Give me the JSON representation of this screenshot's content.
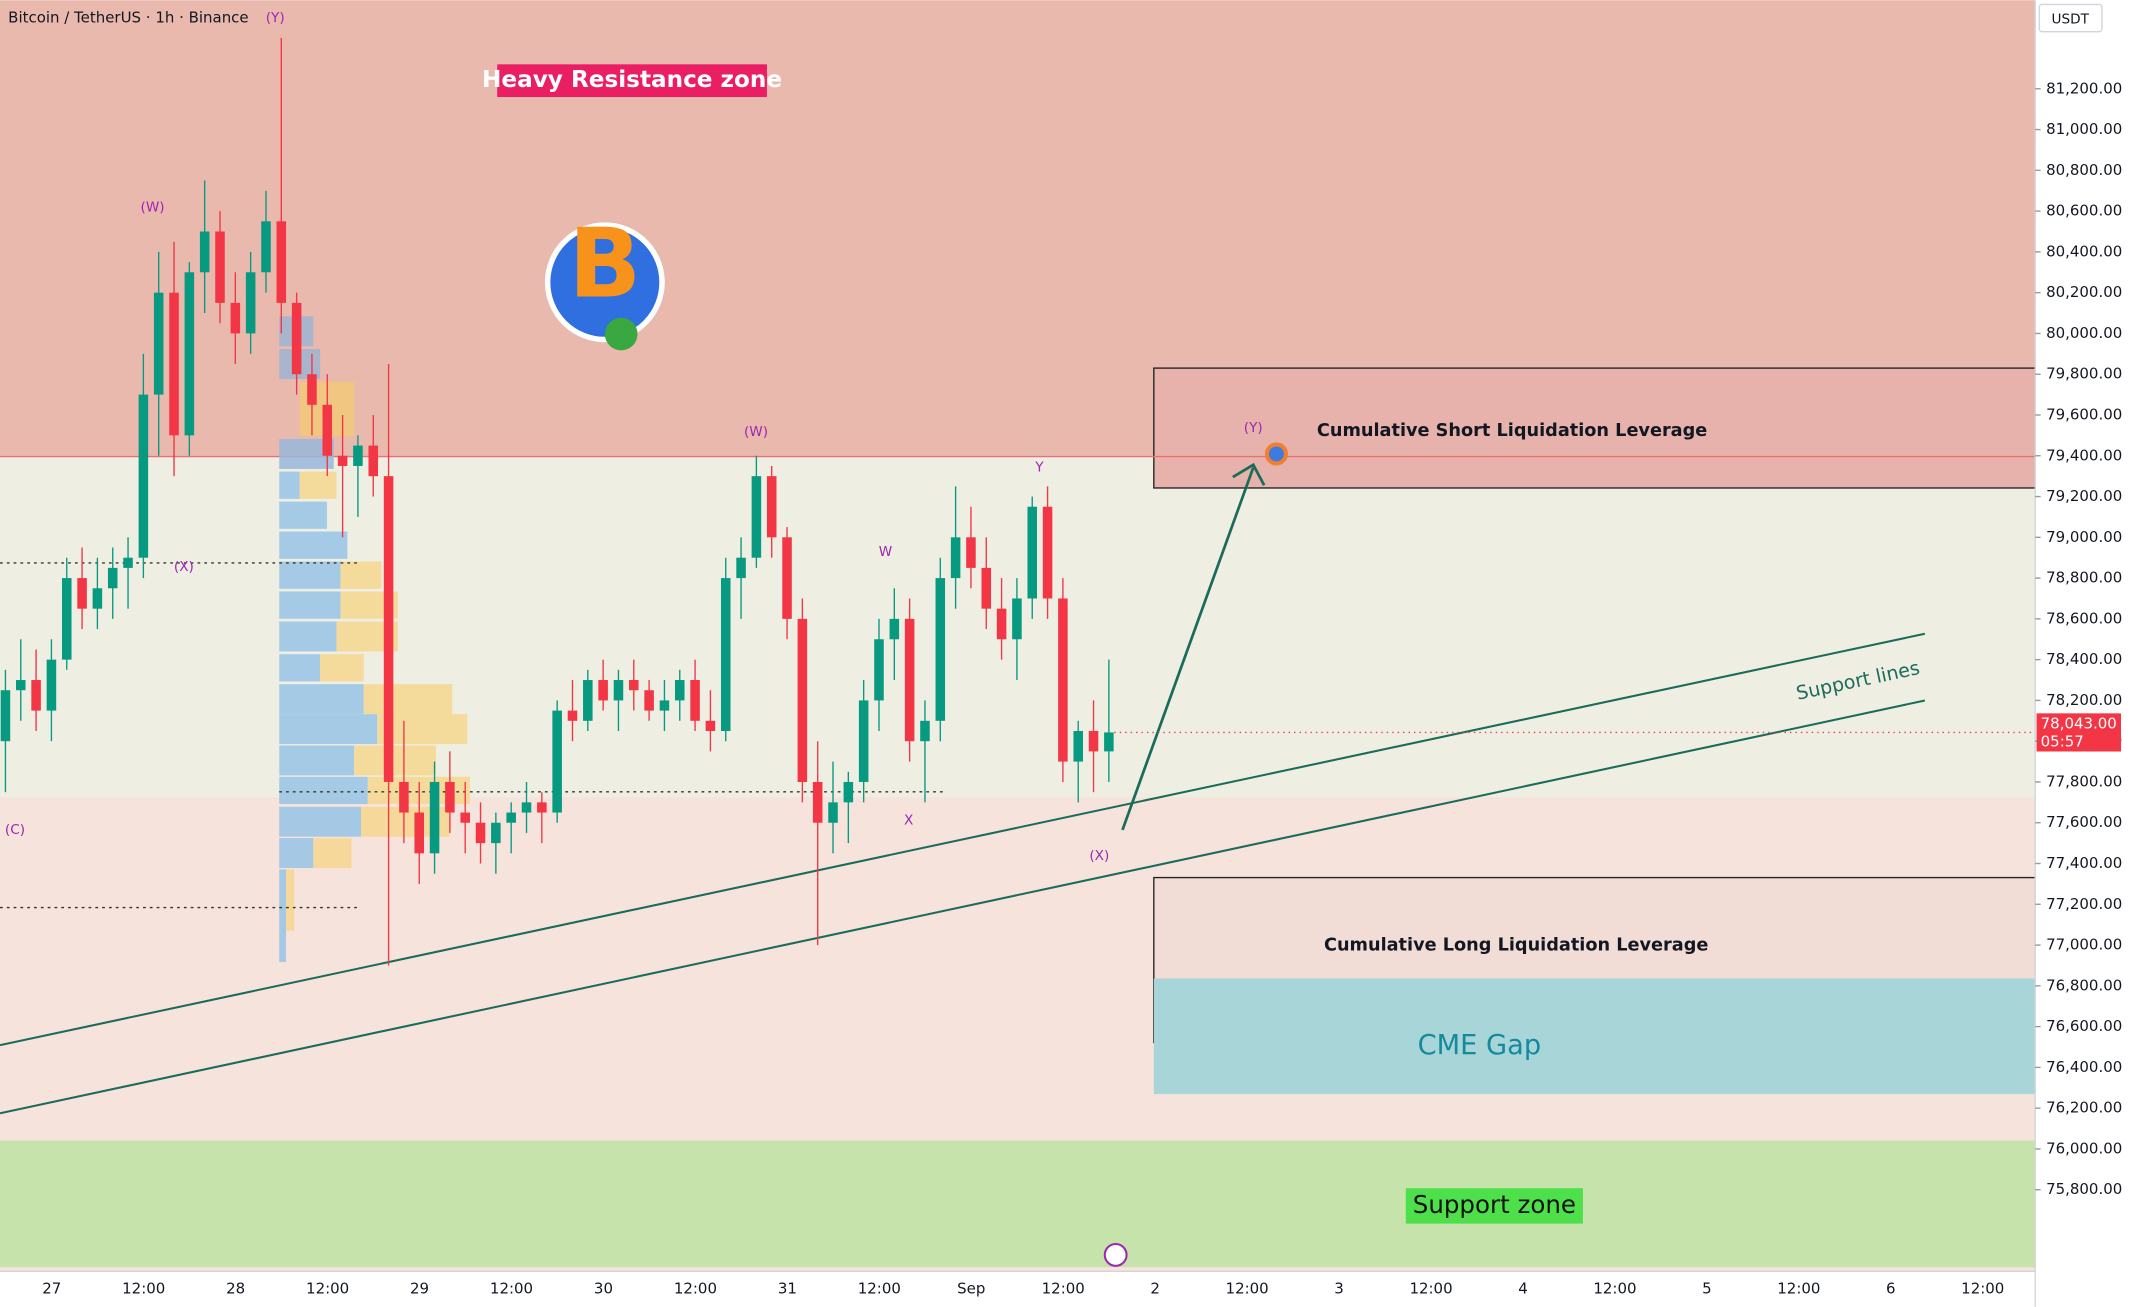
{
  "chart_data": {
    "type": "candlestick",
    "title": "Bitcoin / TetherUS · 1h · Binance",
    "currency": "USDT",
    "up_color": "#089981",
    "down_color": "#f23645",
    "ylim": [
      75420,
      81634
    ],
    "yticks": [
      {
        "value": 75800,
        "label": "75,800.00"
      },
      {
        "value": 76000,
        "label": "76,000.00"
      },
      {
        "value": 76200,
        "label": "76,200.00"
      },
      {
        "value": 76400,
        "label": "76,400.00"
      },
      {
        "value": 76600,
        "label": "76,600.00"
      },
      {
        "value": 76800,
        "label": "76,800.00"
      },
      {
        "value": 77000,
        "label": "77,000.00"
      },
      {
        "value": 77200,
        "label": "77,200.00"
      },
      {
        "value": 77400,
        "label": "77,400.00"
      },
      {
        "value": 77600,
        "label": "77,600.00"
      },
      {
        "value": 77800,
        "label": "77,800.00"
      },
      {
        "value": 78000,
        "label": "78,000.00"
      },
      {
        "value": 78200,
        "label": "78,200.00"
      },
      {
        "value": 78400,
        "label": "78,400.00"
      },
      {
        "value": 78600,
        "label": "78,600.00"
      },
      {
        "value": 78800,
        "label": "78,800.00"
      },
      {
        "value": 79000,
        "label": "79,000.00"
      },
      {
        "value": 79200,
        "label": "79,200.00"
      },
      {
        "value": 79400,
        "label": "79,400.00"
      },
      {
        "value": 79600,
        "label": "79,600.00"
      },
      {
        "value": 79800,
        "label": "79,800.00"
      },
      {
        "value": 80000,
        "label": "80,000.00"
      },
      {
        "value": 80200,
        "label": "80,200.00"
      },
      {
        "value": 80400,
        "label": "80,400.00"
      },
      {
        "value": 80600,
        "label": "80,600.00"
      },
      {
        "value": 80800,
        "label": "80,800.00"
      },
      {
        "value": 81000,
        "label": "81,000.00"
      },
      {
        "value": 81200,
        "label": "81,200.00"
      }
    ],
    "last_price": {
      "value": 78043,
      "label": "78,043.00",
      "countdown": "05:57"
    },
    "x_axis_labels": [
      "27",
      "12:00",
      "28",
      "12:00",
      "29",
      "12:00",
      "30",
      "12:00",
      "31",
      "12:00",
      "Sep",
      "12:00",
      "2",
      "12:00",
      "3",
      "12:00",
      "4",
      "12:00",
      "5",
      "12:00",
      "6",
      "12:00"
    ],
    "ohlc": [
      [
        78000,
        78350,
        77750,
        78250
      ],
      [
        78250,
        78500,
        78100,
        78300
      ],
      [
        78300,
        78450,
        78050,
        78150
      ],
      [
        78150,
        78500,
        78000,
        78400
      ],
      [
        78400,
        78900,
        78350,
        78800
      ],
      [
        78800,
        78950,
        78550,
        78650
      ],
      [
        78650,
        78900,
        78550,
        78750
      ],
      [
        78750,
        78950,
        78600,
        78850
      ],
      [
        78850,
        79000,
        78650,
        78900
      ],
      [
        78900,
        79900,
        78800,
        79700
      ],
      [
        79700,
        80400,
        79400,
        80200
      ],
      [
        80200,
        80450,
        79300,
        79500
      ],
      [
        79500,
        80350,
        79400,
        80300
      ],
      [
        80300,
        80750,
        80100,
        80500
      ],
      [
        80500,
        80600,
        80050,
        80150
      ],
      [
        80150,
        80300,
        79850,
        80000
      ],
      [
        80000,
        80400,
        79900,
        80300
      ],
      [
        80300,
        80700,
        80200,
        80550
      ],
      [
        80550,
        81450,
        80000,
        80150
      ],
      [
        80150,
        80200,
        79700,
        79800
      ],
      [
        79800,
        79900,
        79500,
        79650
      ],
      [
        79650,
        79800,
        79300,
        79400
      ],
      [
        79400,
        79600,
        79000,
        79350
      ],
      [
        79350,
        79500,
        79100,
        79450
      ],
      [
        79450,
        79600,
        79200,
        79300
      ],
      [
        79300,
        79850,
        76900,
        77800
      ],
      [
        77800,
        78100,
        77500,
        77650
      ],
      [
        77650,
        77800,
        77300,
        77450
      ],
      [
        77450,
        77900,
        77350,
        77800
      ],
      [
        77800,
        77950,
        77550,
        77650
      ],
      [
        77650,
        77800,
        77450,
        77600
      ],
      [
        77600,
        77700,
        77400,
        77500
      ],
      [
        77500,
        77650,
        77350,
        77600
      ],
      [
        77600,
        77700,
        77450,
        77650
      ],
      [
        77650,
        77800,
        77550,
        77700
      ],
      [
        77700,
        77750,
        77500,
        77650
      ],
      [
        77650,
        78200,
        77600,
        78150
      ],
      [
        78150,
        78300,
        78000,
        78100
      ],
      [
        78100,
        78350,
        78050,
        78300
      ],
      [
        78300,
        78400,
        78150,
        78200
      ],
      [
        78200,
        78350,
        78050,
        78300
      ],
      [
        78300,
        78400,
        78150,
        78250
      ],
      [
        78250,
        78300,
        78100,
        78150
      ],
      [
        78150,
        78300,
        78050,
        78200
      ],
      [
        78200,
        78350,
        78100,
        78300
      ],
      [
        78300,
        78400,
        78050,
        78100
      ],
      [
        78100,
        78250,
        77950,
        78050
      ],
      [
        78050,
        78900,
        78000,
        78800
      ],
      [
        78800,
        79000,
        78600,
        78900
      ],
      [
        78900,
        79400,
        78850,
        79300
      ],
      [
        79300,
        79350,
        78900,
        79000
      ],
      [
        79000,
        79050,
        78500,
        78600
      ],
      [
        78600,
        78700,
        77700,
        77800
      ],
      [
        77800,
        78000,
        77000,
        77600
      ],
      [
        77600,
        77900,
        77450,
        77700
      ],
      [
        77700,
        77850,
        77500,
        77800
      ],
      [
        77800,
        78300,
        77700,
        78200
      ],
      [
        78200,
        78600,
        78050,
        78500
      ],
      [
        78500,
        78750,
        78300,
        78600
      ],
      [
        78600,
        78700,
        77900,
        78000
      ],
      [
        78000,
        78200,
        77700,
        78100
      ],
      [
        78100,
        78900,
        78000,
        78800
      ],
      [
        78800,
        79250,
        78650,
        79000
      ],
      [
        79000,
        79150,
        78750,
        78850
      ],
      [
        78850,
        79000,
        78550,
        78650
      ],
      [
        78650,
        78800,
        78400,
        78500
      ],
      [
        78500,
        78800,
        78300,
        78700
      ],
      [
        78700,
        79200,
        78600,
        79150
      ],
      [
        79150,
        79250,
        78600,
        78700
      ],
      [
        78700,
        78800,
        77800,
        77900
      ],
      [
        77900,
        78100,
        77700,
        78050
      ],
      [
        78050,
        78200,
        77750,
        77950
      ],
      [
        77950,
        78400,
        77800,
        78043
      ]
    ],
    "zones": [
      {
        "label": "Heavy Resistance zone",
        "range": [
          79396,
          81634
        ],
        "color": "#e9b9ae"
      },
      {
        "label": "Support zone",
        "range": [
          75420,
          76041
        ],
        "color": "#c5e3ab"
      },
      {
        "label": "Cumulative Short Liquidation Leverage",
        "range": [
          79242,
          79830
        ],
        "color": "#e6b2ab"
      },
      {
        "label": "Cumulative Long Liquidation Leverage",
        "range": [
          76522,
          77331
        ],
        "color": "#f2dcd6"
      },
      {
        "label": "CME Gap",
        "range": [
          76269,
          76836
        ],
        "color": "#a8d6d8"
      }
    ],
    "support_lines_label": "Support lines",
    "wave_labels": [
      "(Y)",
      "(W)",
      "(X)",
      "(C)",
      "(W)",
      "W",
      "X",
      "Y",
      "(X)",
      "(Y)"
    ]
  }
}
